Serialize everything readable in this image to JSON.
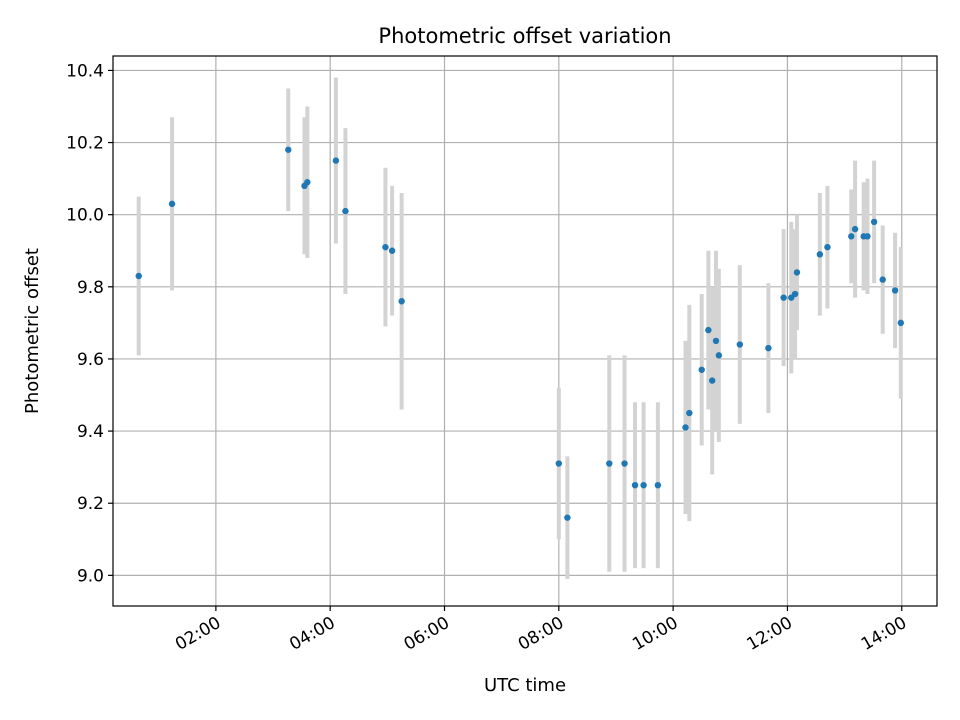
{
  "chart_data": {
    "type": "scatter",
    "title": "Photometric offset variation",
    "xlabel": "UTC time",
    "ylabel": "Photometric offset",
    "x_ticks": [
      "02:00",
      "04:00",
      "06:00",
      "08:00",
      "10:00",
      "12:00",
      "14:00"
    ],
    "x_tick_hours": [
      2,
      4,
      6,
      8,
      10,
      12,
      14
    ],
    "y_ticks": [
      "9.0",
      "9.2",
      "9.4",
      "9.6",
      "9.8",
      "10.0",
      "10.2",
      "10.4"
    ],
    "y_tick_values": [
      9.0,
      9.2,
      9.4,
      9.6,
      9.8,
      10.0,
      10.2,
      10.4
    ],
    "xlim": [
      "00:12",
      "14:37"
    ],
    "ylim": [
      8.915,
      10.44
    ],
    "grid": true,
    "marker_color": "#1f77b4",
    "errorbar_color": "#d3d3d3",
    "points": [
      {
        "x": "00:39",
        "y": 9.83,
        "err": 0.22
      },
      {
        "x": "01:14",
        "y": 10.03,
        "err": 0.24
      },
      {
        "x": "03:16",
        "y": 10.18,
        "err": 0.17
      },
      {
        "x": "03:33",
        "y": 10.08,
        "err": 0.19
      },
      {
        "x": "03:36",
        "y": 10.09,
        "err": 0.21
      },
      {
        "x": "04:06",
        "y": 10.15,
        "err": 0.23
      },
      {
        "x": "04:16",
        "y": 10.01,
        "err": 0.23
      },
      {
        "x": "04:58",
        "y": 9.91,
        "err": 0.22
      },
      {
        "x": "05:05",
        "y": 9.9,
        "err": 0.18
      },
      {
        "x": "05:15",
        "y": 9.76,
        "err": 0.3
      },
      {
        "x": "08:00",
        "y": 9.31,
        "err": 0.21
      },
      {
        "x": "08:09",
        "y": 9.16,
        "err": 0.17
      },
      {
        "x": "08:53",
        "y": 9.31,
        "err": 0.3
      },
      {
        "x": "09:09",
        "y": 9.31,
        "err": 0.3
      },
      {
        "x": "09:20",
        "y": 9.25,
        "err": 0.23
      },
      {
        "x": "09:29",
        "y": 9.25,
        "err": 0.23
      },
      {
        "x": "09:44",
        "y": 9.25,
        "err": 0.23
      },
      {
        "x": "10:13",
        "y": 9.41,
        "err": 0.24
      },
      {
        "x": "10:17",
        "y": 9.45,
        "err": 0.3
      },
      {
        "x": "10:30",
        "y": 9.57,
        "err": 0.21
      },
      {
        "x": "10:37",
        "y": 9.68,
        "err": 0.22
      },
      {
        "x": "10:41",
        "y": 9.54,
        "err": 0.26
      },
      {
        "x": "10:45",
        "y": 9.65,
        "err": 0.25
      },
      {
        "x": "10:48",
        "y": 9.61,
        "err": 0.24
      },
      {
        "x": "11:10",
        "y": 9.64,
        "err": 0.22
      },
      {
        "x": "11:40",
        "y": 9.63,
        "err": 0.18
      },
      {
        "x": "11:56",
        "y": 9.77,
        "err": 0.19
      },
      {
        "x": "12:04",
        "y": 9.77,
        "err": 0.21
      },
      {
        "x": "12:08",
        "y": 9.78,
        "err": 0.18
      },
      {
        "x": "12:10",
        "y": 9.84,
        "err": 0.16
      },
      {
        "x": "12:34",
        "y": 9.89,
        "err": 0.17
      },
      {
        "x": "12:42",
        "y": 9.91,
        "err": 0.17
      },
      {
        "x": "13:07",
        "y": 9.94,
        "err": 0.13
      },
      {
        "x": "13:11",
        "y": 9.96,
        "err": 0.19
      },
      {
        "x": "13:20",
        "y": 9.94,
        "err": 0.15
      },
      {
        "x": "13:24",
        "y": 9.94,
        "err": 0.16
      },
      {
        "x": "13:31",
        "y": 9.98,
        "err": 0.17
      },
      {
        "x": "13:40",
        "y": 9.82,
        "err": 0.15
      },
      {
        "x": "13:53",
        "y": 9.79,
        "err": 0.16
      },
      {
        "x": "13:59",
        "y": 9.7,
        "err": 0.21
      }
    ]
  }
}
